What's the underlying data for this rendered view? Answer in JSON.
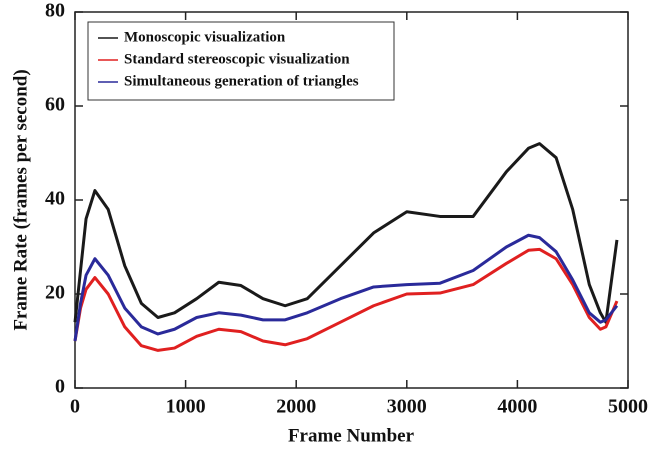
{
  "chart_data": {
    "type": "line",
    "x_label": "Frame Number",
    "y_label": "Frame Rate (frames per second)",
    "x": [
      0,
      50,
      100,
      180,
      300,
      450,
      600,
      750,
      900,
      1100,
      1300,
      1500,
      1700,
      1900,
      2100,
      2400,
      2700,
      3000,
      3300,
      3600,
      3900,
      4100,
      4200,
      4350,
      4500,
      4650,
      4750,
      4800,
      4900
    ],
    "series": [
      {
        "name": "Monoscopic visualization",
        "color": "#1a1a1a",
        "values": [
          14,
          25,
          36,
          42,
          38,
          26,
          18,
          15,
          16,
          19,
          22.5,
          21.8,
          19,
          17.5,
          19,
          26,
          33,
          37.5,
          36.5,
          36.5,
          46,
          51,
          52,
          49,
          38,
          22,
          16,
          14,
          31.5
        ]
      },
      {
        "name": "Standard stereoscopic visualization",
        "color": "#e02020",
        "values": [
          10,
          17,
          21,
          23.5,
          20,
          13,
          9,
          8,
          8.5,
          11,
          12.5,
          12,
          10,
          9.2,
          10.5,
          14,
          17.5,
          20,
          20.2,
          22,
          26.5,
          29.3,
          29.5,
          27.5,
          22,
          15,
          12.5,
          13,
          18.5
        ]
      },
      {
        "name": "Simultaneous generation of triangles",
        "color": "#2a2a9a",
        "values": [
          10,
          18,
          24,
          27.5,
          24,
          17,
          13,
          11.5,
          12.5,
          15,
          16,
          15.5,
          14.5,
          14.5,
          16,
          19,
          21.5,
          22,
          22.3,
          25,
          30,
          32.5,
          32,
          29,
          23,
          16,
          14,
          14.5,
          17.5
        ]
      }
    ],
    "xlim": [
      0,
      5000
    ],
    "xticks": [
      0,
      1000,
      2000,
      3000,
      4000,
      5000
    ],
    "ylim": [
      0,
      80
    ],
    "yticks": [
      0,
      20,
      40,
      60,
      80
    ],
    "legend": "upper-left"
  }
}
